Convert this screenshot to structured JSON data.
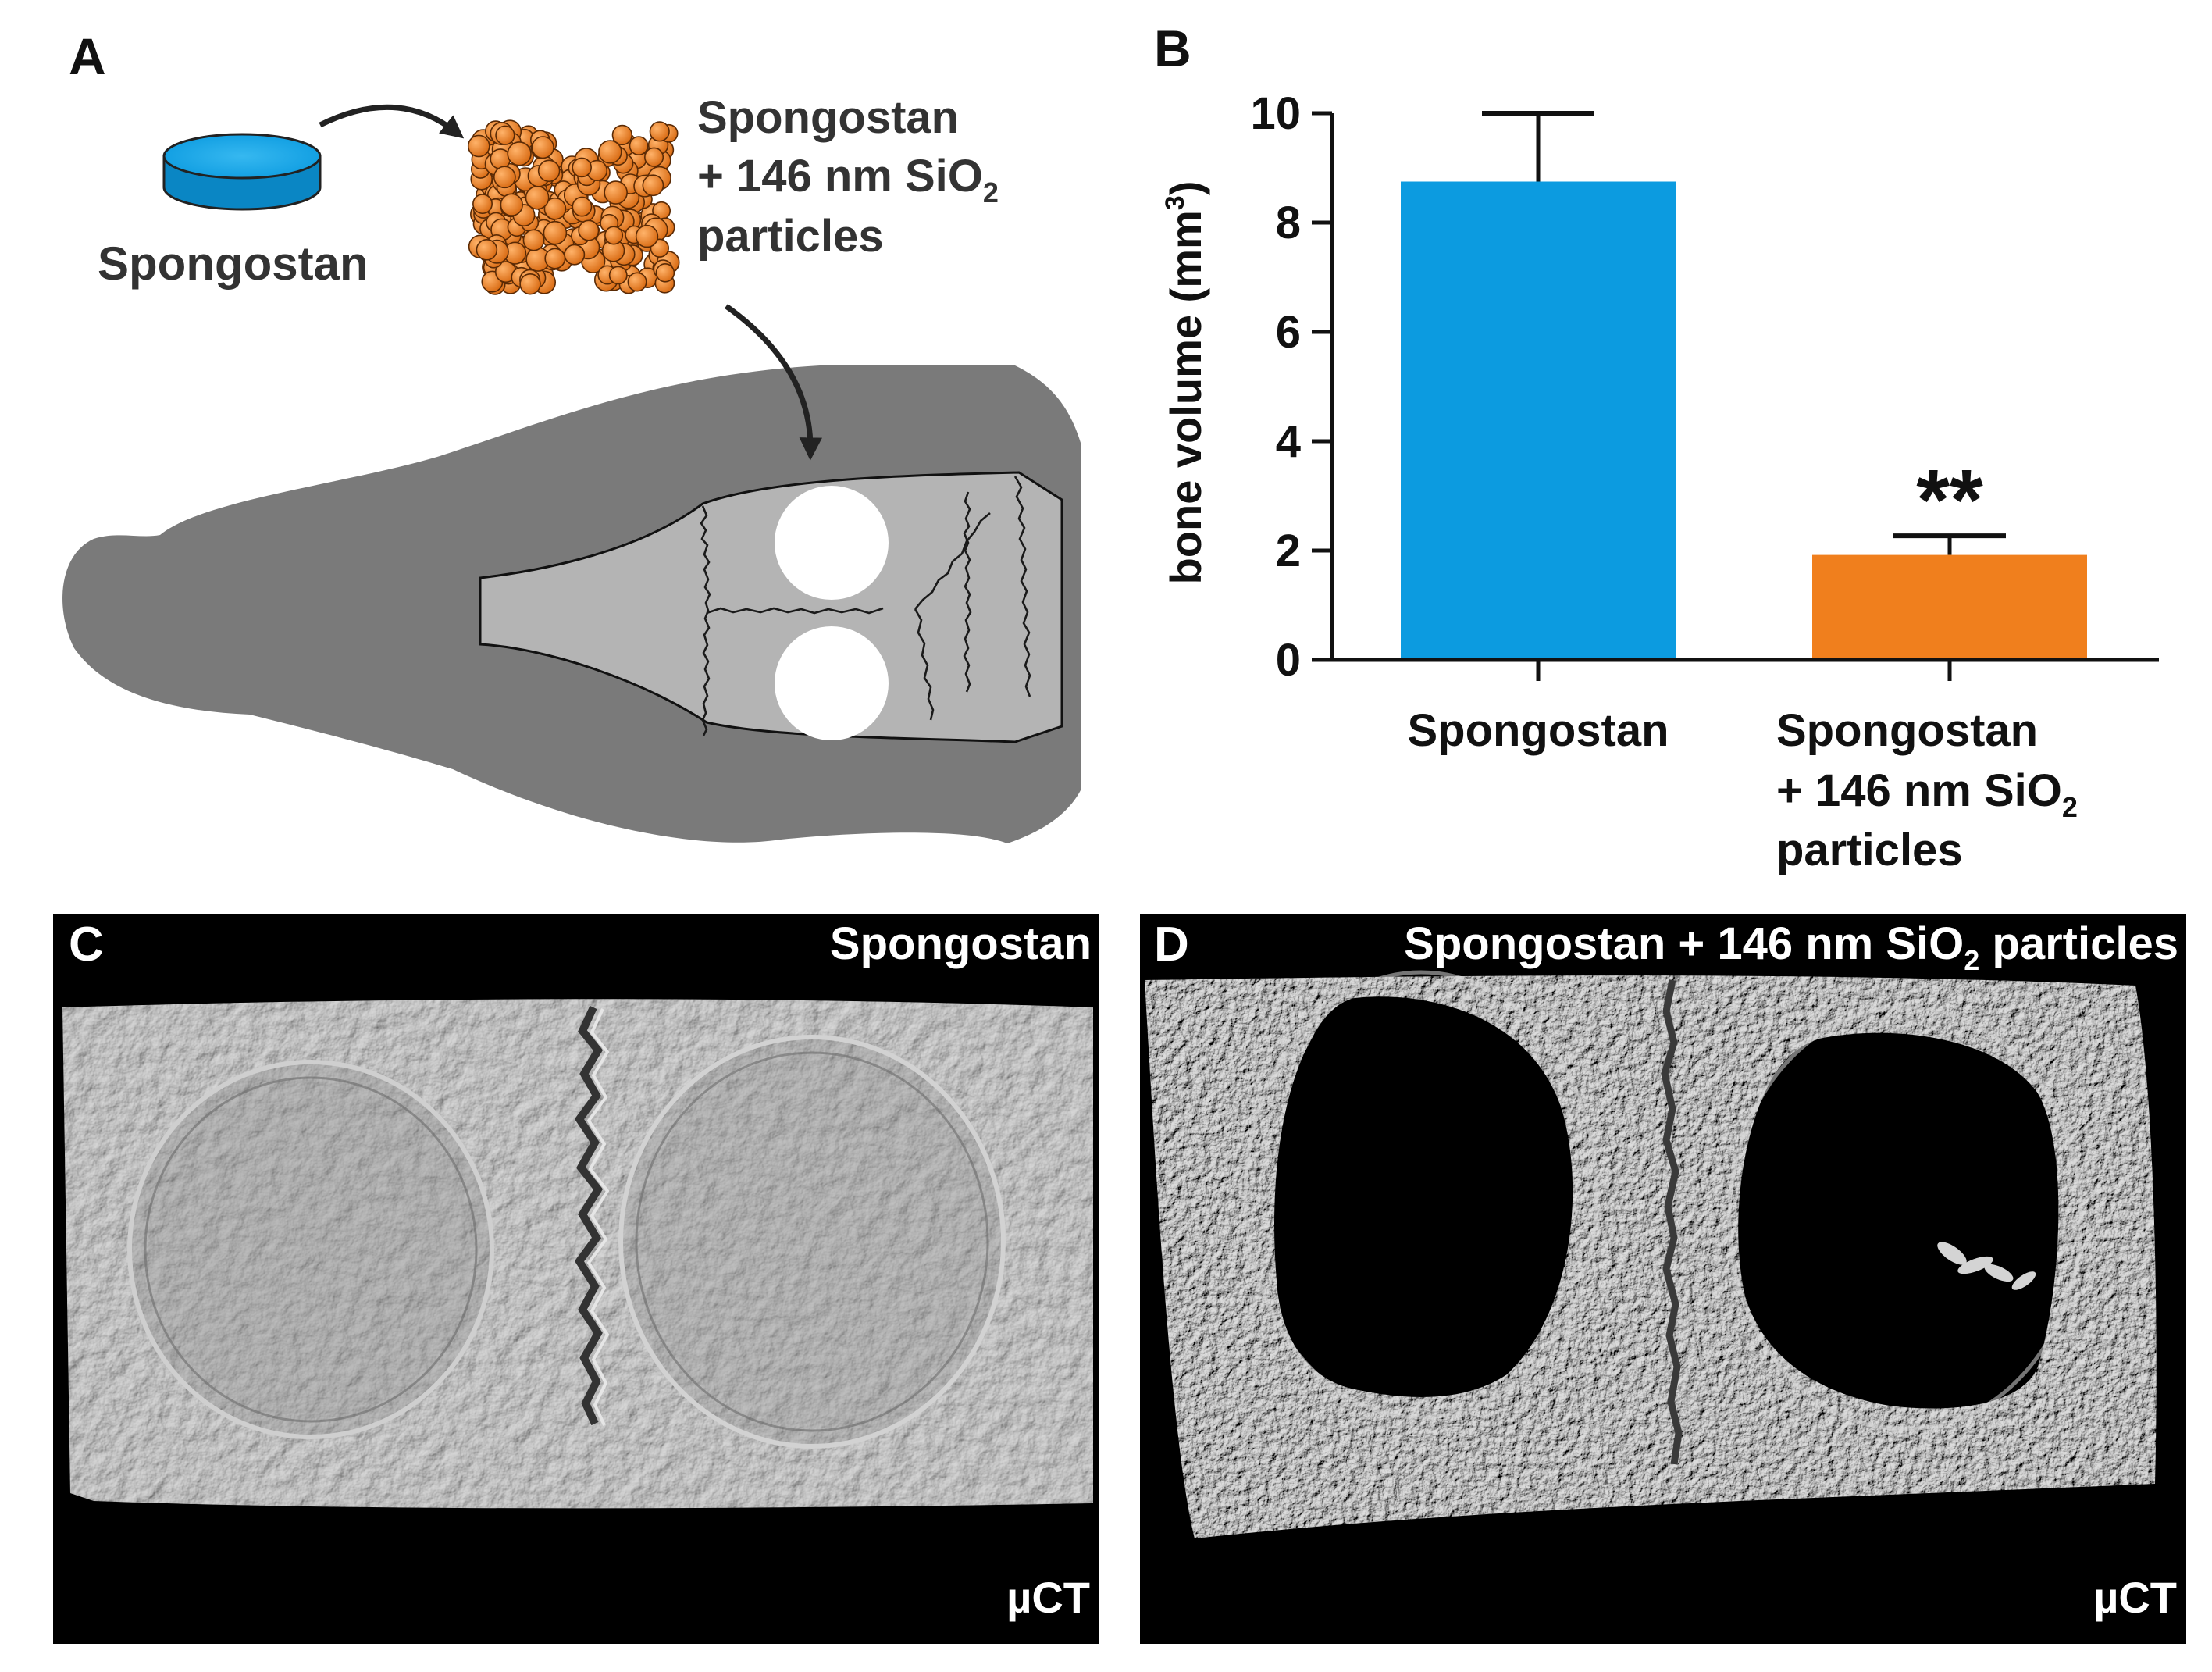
{
  "panels": {
    "a": {
      "letter": "A",
      "material_label": "Spongostan",
      "treatment_label": {
        "line1": "Spongostan",
        "line2_pre": "+ 146 nm SiO",
        "line2_sub": "2",
        "line3": "particles"
      }
    },
    "b": {
      "letter": "B"
    },
    "c": {
      "letter": "C",
      "title": "Spongostan",
      "modality": "µCT"
    },
    "d": {
      "letter": "D",
      "title_pre": "Spongostan + 146 nm SiO",
      "title_sub": "2",
      "title_post": " particles",
      "modality": "µCT"
    }
  },
  "colors": {
    "spongostan": "#0c9be0",
    "sio2": "#f07f1d",
    "skull": "#7a7a7a",
    "calvaria": "#b4b4b4"
  },
  "chart_data": {
    "type": "bar",
    "ylabel": {
      "main": "bone volume (mm",
      "sup": "3",
      "close": ")"
    },
    "ylim": [
      0,
      10
    ],
    "yticks": [
      "0",
      "2",
      "4",
      "6",
      "8",
      "10"
    ],
    "categories": [
      {
        "line1": "Spongostan"
      },
      {
        "line1": "Spongostan",
        "line2_pre": "+ 146 nm SiO",
        "line2_sub": "2",
        "line3": "particles"
      }
    ],
    "values": [
      8.75,
      1.92
    ],
    "errors": [
      1.25,
      0.35
    ],
    "significance": [
      "",
      "**"
    ],
    "colors": [
      "#0c9be0",
      "#f07f1d"
    ]
  }
}
